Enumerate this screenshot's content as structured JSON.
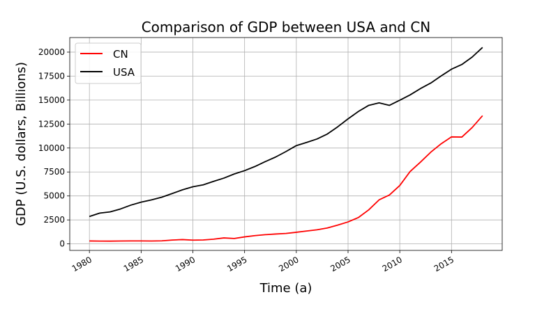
{
  "chart_data": {
    "type": "line",
    "title": "Comparison of GDP between USA and CN",
    "xlabel": "Time (a)",
    "ylabel": "GDP (U.S. dollars, Billions)",
    "x": [
      1980,
      1981,
      1982,
      1983,
      1984,
      1985,
      1986,
      1987,
      1988,
      1989,
      1990,
      1991,
      1992,
      1993,
      1994,
      1995,
      1996,
      1997,
      1998,
      1999,
      2000,
      2001,
      2002,
      2003,
      2004,
      2005,
      2006,
      2007,
      2008,
      2009,
      2010,
      2011,
      2012,
      2013,
      2014,
      2015,
      2016,
      2017,
      2018
    ],
    "xlim": [
      1978.1,
      2019.9
    ],
    "ylim": [
      -680,
      21520
    ],
    "xticks": [
      1980,
      1985,
      1990,
      1995,
      2000,
      2005,
      2010,
      2015
    ],
    "xtick_labels": [
      "1980",
      "1985",
      "1990",
      "1995",
      "2000",
      "2005",
      "2010",
      "2015"
    ],
    "yticks": [
      0,
      2500,
      5000,
      7500,
      10000,
      12500,
      15000,
      17500,
      20000
    ],
    "ytick_labels": [
      "0",
      "2500",
      "5000",
      "7500",
      "10000",
      "12500",
      "15000",
      "17500",
      "20000"
    ],
    "grid": true,
    "legend_position": "top-left",
    "series": [
      {
        "name": "CN",
        "color": "#ff0000",
        "values": [
          305,
          290,
          285,
          300,
          310,
          310,
          300,
          320,
          400,
          450,
          390,
          410,
          490,
          620,
          560,
          730,
          860,
          960,
          1030,
          1090,
          1210,
          1340,
          1470,
          1660,
          1960,
          2290,
          2750,
          3550,
          4590,
          5100,
          6090,
          7550,
          8530,
          9570,
          10440,
          11160,
          11140,
          12140,
          13370
        ]
      },
      {
        "name": "USA",
        "color": "#000000",
        "values": [
          2860,
          3210,
          3340,
          3640,
          4040,
          4350,
          4590,
          4870,
          5250,
          5640,
          5960,
          6160,
          6520,
          6860,
          7290,
          7640,
          8070,
          8580,
          9060,
          9630,
          10250,
          10580,
          10940,
          11460,
          12210,
          13040,
          13810,
          14450,
          14710,
          14450,
          14990,
          15540,
          16200,
          16780,
          17520,
          18220,
          18710,
          19490,
          20490
        ]
      }
    ]
  }
}
